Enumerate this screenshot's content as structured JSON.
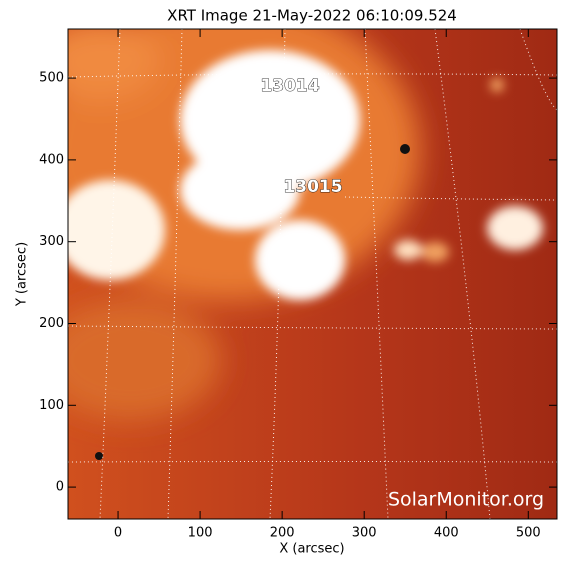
{
  "chart_data": {
    "type": "image",
    "title": "XRT Image 21-May-2022 06:10:09.524",
    "xlabel": "X (arcsec)",
    "ylabel": "Y (arcsec)",
    "xlim": [
      -61,
      535
    ],
    "ylim": [
      -39,
      560
    ],
    "xticks": [
      0,
      100,
      200,
      300,
      400,
      500
    ],
    "yticks": [
      0,
      100,
      200,
      300,
      400,
      500
    ],
    "annotations": [
      "13014",
      "13015",
      "SolarMonitor.org"
    ]
  }
}
